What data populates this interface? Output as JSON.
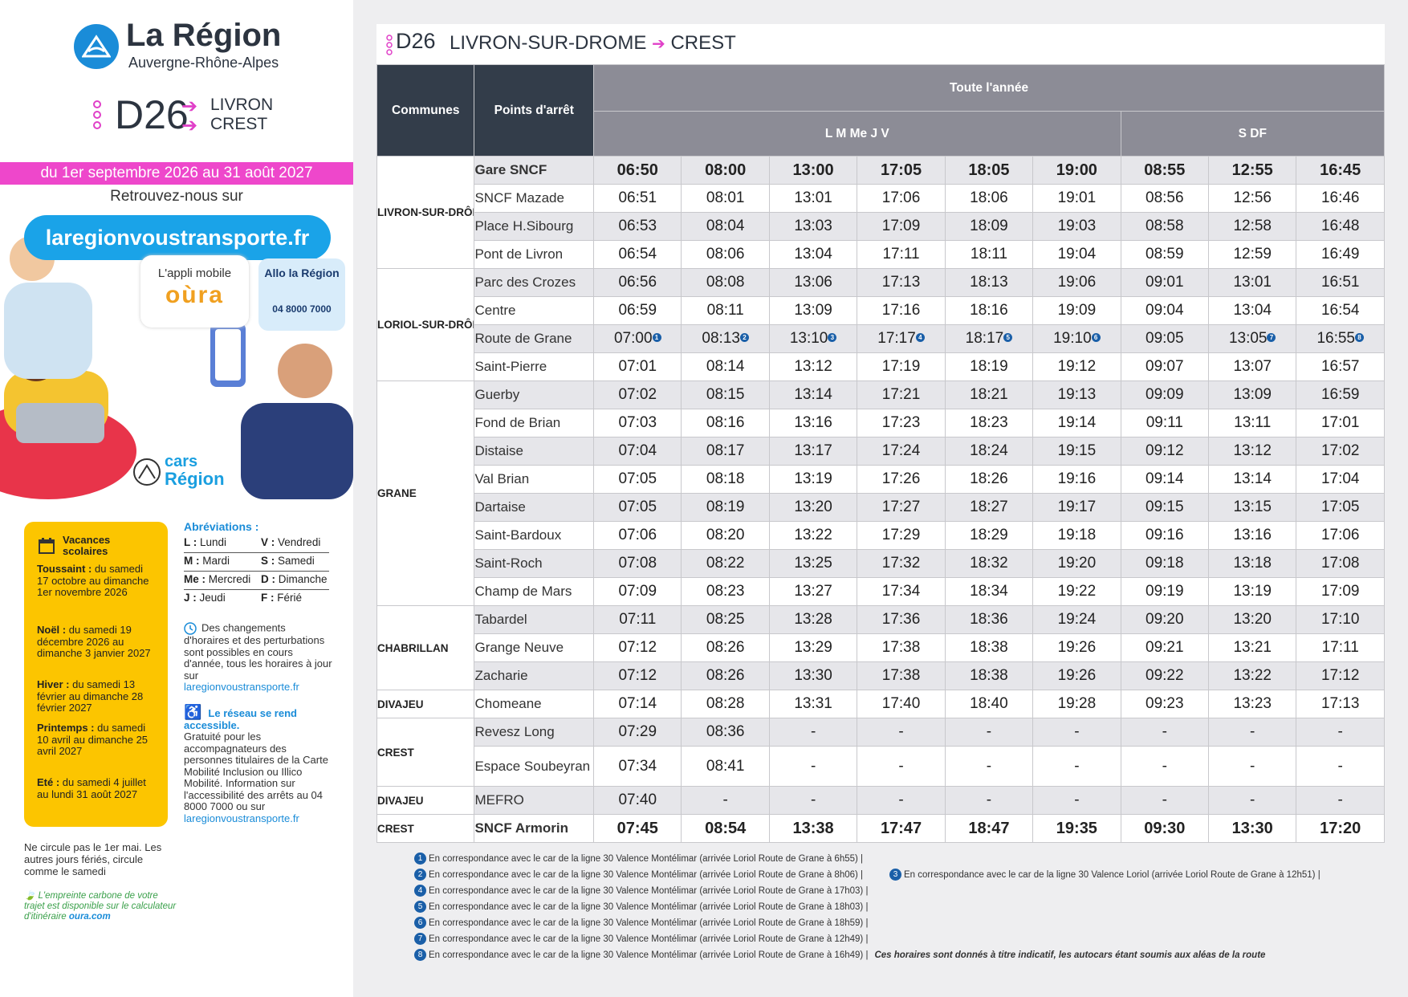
{
  "brand": {
    "title": "La Région",
    "subtitle": "Auvergne-Rhône-Alpes"
  },
  "line": {
    "code": "D26",
    "dest1": "LIVRON",
    "dest2": "CREST"
  },
  "period": "du 1er septembre 2026 au 31 août 2027",
  "retrouvez": "Retrouvez-nous sur",
  "website": "laregionvoustransporte.fr",
  "appli": {
    "label": "L'appli mobile",
    "name": "oùra"
  },
  "allo": {
    "title": "Allo la Région",
    "phone": "04 8000 7000"
  },
  "cars": {
    "l1": "cars",
    "l2": "Région"
  },
  "vacances": {
    "title": "Vacances scolaires",
    "items": [
      {
        "label": "Toussaint :",
        "text": "du samedi 17 octobre au dimanche 1er novembre 2026"
      },
      {
        "label": "Noël :",
        "text": "du samedi 19 décembre 2026 au dimanche 3 janvier 2027"
      },
      {
        "label": "Hiver :",
        "text": "du samedi 13 février au dimanche 28 février 2027"
      },
      {
        "label": "Printemps :",
        "text": "du samedi 10 avril au dimanche 25 avril 2027"
      },
      {
        "label": "Eté :",
        "text": "du samedi 4 juillet au lundi 31 août 2027"
      }
    ]
  },
  "abbr": {
    "title": "Abréviations :",
    "rows": [
      [
        "L :",
        "Lundi",
        "V :",
        "Vendredi"
      ],
      [
        "M :",
        "Mardi",
        "S :",
        "Samedi"
      ],
      [
        "Me :",
        "Mercredi",
        "D :",
        "Dimanche"
      ],
      [
        "J :",
        "Jeudi",
        "F :",
        "Férié"
      ]
    ]
  },
  "changes": {
    "text": "Des changements d'horaires et des perturbations sont possibles en cours d'année, tous les horaires à jour sur",
    "link": "laregionvoustransporte.fr"
  },
  "access": {
    "title": "Le réseau se rend accessible.",
    "text": "Gratuité pour les accompagnateurs des personnes titulaires de la Carte Mobilité Inclusion ou Illico Mobilité. Information sur l'accessibilité des arrêts au 04 8000 7000 ou sur",
    "link": "laregionvoustransporte.fr"
  },
  "notes": {
    "n1": "Ne circule pas le 1er mai. Les autres jours fériés, circule comme le samedi",
    "n2a": "L'empreinte carbone de votre trajet est disponible sur le calculateur d'itinéraire",
    "n2b": "oura.com"
  },
  "header": {
    "code": "D26",
    "from": "LIVRON-SUR-DROME",
    "to": "CREST"
  },
  "table": {
    "col_communes": "Communes",
    "col_points": "Points d'arrêt",
    "period_label": "Toute l'année",
    "group1": "L M Me J V",
    "group2": "S DF",
    "departures": [
      "06:50",
      "08:00",
      "13:00",
      "17:05",
      "18:05",
      "19:00",
      "08:55",
      "12:55",
      "16:45"
    ],
    "communes": [
      {
        "name": "LIVRON-SUR-DRÔME",
        "rows": 4
      },
      {
        "name": "LORIOL-SUR-DRÔME",
        "rows": 4
      },
      {
        "name": "GRANE",
        "rows": 8
      },
      {
        "name": "CHABRILLAN",
        "rows": 3
      },
      {
        "name": "DIVAJEU",
        "rows": 1
      },
      {
        "name": "CREST",
        "rows": 2
      },
      {
        "name": "DIVAJEU",
        "rows": 1
      },
      {
        "name": "CREST",
        "rows": 1
      }
    ],
    "stops": [
      {
        "name": "Gare SNCF",
        "bold": true,
        "times": [
          "06:50",
          "08:00",
          "13:00",
          "17:05",
          "18:05",
          "19:00",
          "08:55",
          "12:55",
          "16:45"
        ]
      },
      {
        "name": "SNCF Mazade",
        "times": [
          "06:51",
          "08:01",
          "13:01",
          "17:06",
          "18:06",
          "19:01",
          "08:56",
          "12:56",
          "16:46"
        ]
      },
      {
        "name": "Place H.Sibourg",
        "times": [
          "06:53",
          "08:04",
          "13:03",
          "17:09",
          "18:09",
          "19:03",
          "08:58",
          "12:58",
          "16:48"
        ]
      },
      {
        "name": "Pont de Livron",
        "times": [
          "06:54",
          "08:06",
          "13:04",
          "17:11",
          "18:11",
          "19:04",
          "08:59",
          "12:59",
          "16:49"
        ]
      },
      {
        "name": "Parc des Crozes",
        "times": [
          "06:56",
          "08:08",
          "13:06",
          "17:13",
          "18:13",
          "19:06",
          "09:01",
          "13:01",
          "16:51"
        ]
      },
      {
        "name": "Centre",
        "times": [
          "06:59",
          "08:11",
          "13:09",
          "17:16",
          "18:16",
          "19:09",
          "09:04",
          "13:04",
          "16:54"
        ]
      },
      {
        "name": "Route de Grane",
        "times": [
          "07:00",
          "08:13",
          "13:10",
          "17:17",
          "18:17",
          "19:10",
          "09:05",
          "13:05",
          "16:55"
        ],
        "badges": [
          "1",
          "2",
          "3",
          "4",
          "5",
          "6",
          "",
          "7",
          "8"
        ]
      },
      {
        "name": "Saint-Pierre",
        "times": [
          "07:01",
          "08:14",
          "13:12",
          "17:19",
          "18:19",
          "19:12",
          "09:07",
          "13:07",
          "16:57"
        ]
      },
      {
        "name": "Guerby",
        "times": [
          "07:02",
          "08:15",
          "13:14",
          "17:21",
          "18:21",
          "19:13",
          "09:09",
          "13:09",
          "16:59"
        ]
      },
      {
        "name": "Fond de Brian",
        "times": [
          "07:03",
          "08:16",
          "13:16",
          "17:23",
          "18:23",
          "19:14",
          "09:11",
          "13:11",
          "17:01"
        ]
      },
      {
        "name": "Distaise",
        "times": [
          "07:04",
          "08:17",
          "13:17",
          "17:24",
          "18:24",
          "19:15",
          "09:12",
          "13:12",
          "17:02"
        ]
      },
      {
        "name": "Val Brian",
        "times": [
          "07:05",
          "08:18",
          "13:19",
          "17:26",
          "18:26",
          "19:16",
          "09:14",
          "13:14",
          "17:04"
        ]
      },
      {
        "name": "Dartaise",
        "times": [
          "07:05",
          "08:19",
          "13:20",
          "17:27",
          "18:27",
          "19:17",
          "09:15",
          "13:15",
          "17:05"
        ]
      },
      {
        "name": "Saint-Bardoux",
        "times": [
          "07:06",
          "08:20",
          "13:22",
          "17:29",
          "18:29",
          "19:18",
          "09:16",
          "13:16",
          "17:06"
        ]
      },
      {
        "name": "Saint-Roch",
        "times": [
          "07:08",
          "08:22",
          "13:25",
          "17:32",
          "18:32",
          "19:20",
          "09:18",
          "13:18",
          "17:08"
        ]
      },
      {
        "name": "Champ de Mars",
        "times": [
          "07:09",
          "08:23",
          "13:27",
          "17:34",
          "18:34",
          "19:22",
          "09:19",
          "13:19",
          "17:09"
        ]
      },
      {
        "name": "Tabardel",
        "times": [
          "07:11",
          "08:25",
          "13:28",
          "17:36",
          "18:36",
          "19:24",
          "09:20",
          "13:20",
          "17:10"
        ]
      },
      {
        "name": "Grange Neuve",
        "times": [
          "07:12",
          "08:26",
          "13:29",
          "17:38",
          "18:38",
          "19:26",
          "09:21",
          "13:21",
          "17:11"
        ]
      },
      {
        "name": "Zacharie",
        "times": [
          "07:12",
          "08:26",
          "13:30",
          "17:38",
          "18:38",
          "19:26",
          "09:22",
          "13:22",
          "17:12"
        ]
      },
      {
        "name": "Chomeane",
        "times": [
          "07:14",
          "08:28",
          "13:31",
          "17:40",
          "18:40",
          "19:28",
          "09:23",
          "13:23",
          "17:13"
        ]
      },
      {
        "name": "Revesz Long",
        "times": [
          "07:29",
          "08:36",
          "-",
          "-",
          "-",
          "-",
          "-",
          "-",
          "-"
        ]
      },
      {
        "name": "Espace Soubeyran",
        "tall": true,
        "times": [
          "07:34",
          "08:41",
          "-",
          "-",
          "-",
          "-",
          "-",
          "-",
          "-"
        ]
      },
      {
        "name": "MEFRO",
        "times": [
          "07:40",
          "-",
          "-",
          "-",
          "-",
          "-",
          "-",
          "-",
          "-"
        ]
      },
      {
        "name": "SNCF Armorin",
        "bold": true,
        "times": [
          "07:45",
          "08:54",
          "13:38",
          "17:47",
          "18:47",
          "19:35",
          "09:30",
          "13:30",
          "17:20"
        ]
      }
    ]
  },
  "footnotes": [
    {
      "num": "1",
      "text": "En correspondance avec le car de la ligne 30 Valence Montélimar (arrivée Loriol Route de Grane à 6h55)"
    },
    {
      "num": "2",
      "text": "En correspondance avec le car de la ligne 30 Valence Montélimar (arrivée Loriol Route de Grane à 8h06)"
    },
    {
      "num": "3",
      "text": "En correspondance avec le car de la ligne 30 Valence Loriol (arrivée Loriol Route de Grane à 12h51)"
    },
    {
      "num": "4",
      "text": "En correspondance avec le car de la ligne 30 Valence Montélimar (arrivée Loriol Route de Grane à 17h03)"
    },
    {
      "num": "5",
      "text": "En correspondance avec le car de la ligne 30 Valence Montélimar (arrivée Loriol Route de Grane à 18h03)"
    },
    {
      "num": "6",
      "text": "En correspondance avec le car de la ligne 30 Valence Montélimar (arrivée Loriol Route de Grane à 18h59)"
    },
    {
      "num": "7",
      "text": "En correspondance avec le car de la ligne 30 Valence Montélimar (arrivée Loriol Route de Grane à 12h49)"
    },
    {
      "num": "8",
      "text": "En correspondance avec le car de la ligne 30 Valence Montélimar (arrivée Loriol Route de Grane à 16h49)"
    }
  ],
  "disclaimer": "Ces horaires sont donnés à titre indicatif, les autocars étant soumis aux aléas de la route",
  "colors": {
    "accent_pink": "#ee47cb",
    "brand_blue": "#1a8cd8",
    "dark_header": "#333d4a",
    "grey_header": "#8c8c96",
    "vacances_yellow": "#fcc500"
  }
}
